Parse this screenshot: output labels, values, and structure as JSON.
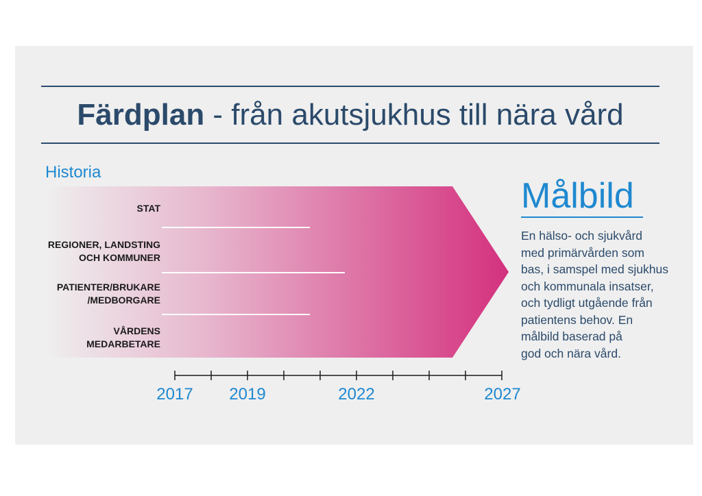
{
  "title": {
    "bold": "Färdplan",
    "rest": " - från akutsjukhus till nära vård"
  },
  "history_label": "Historia",
  "rows": [
    {
      "label": "STAT"
    },
    {
      "label": "REGIONER, LANDSTING\nOCH KOMMUNER"
    },
    {
      "label": "PATIENTER/BRUKARE\n/MEDBORGARE"
    },
    {
      "label": "VÅRDENS\nMEDARBETARE"
    }
  ],
  "timeline": {
    "years": [
      "2017",
      "2019",
      "2022",
      "2027"
    ]
  },
  "target": {
    "heading": "Målbild",
    "description": "En hälso- och sjukvård\nmed primärvården som\nbas, i samspel med sjukhus\noch kommunala insatser,\noch tydligt utgående från\npatientens behov. En\nmålbild baserad på\ngod och nära vård."
  },
  "colors": {
    "navy": "#2b4a6b",
    "blue": "#1e88d0",
    "magenta": "#d4317e",
    "panel": "#efefef"
  }
}
